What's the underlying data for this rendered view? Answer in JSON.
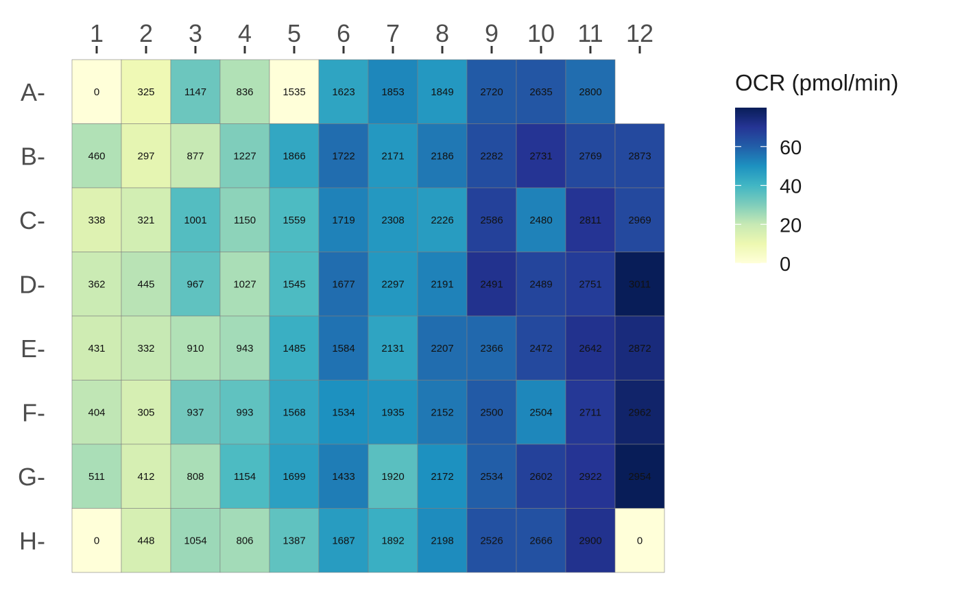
{
  "chart_data": {
    "type": "heatmap",
    "columns": [
      "1",
      "2",
      "3",
      "4",
      "5",
      "6",
      "7",
      "8",
      "9",
      "10",
      "11",
      "12"
    ],
    "rows": [
      "A",
      "B",
      "C",
      "D",
      "E",
      "F",
      "G",
      "H"
    ],
    "row_labels": [
      "A-",
      "B-",
      "C-",
      "D-",
      "E-",
      "F-",
      "G-",
      "H-"
    ],
    "values": [
      [
        0,
        325,
        1147,
        836,
        1535,
        1623,
        1853,
        1849,
        2720,
        2635,
        2800,
        null
      ],
      [
        460,
        297,
        877,
        1227,
        1866,
        1722,
        2171,
        2186,
        2282,
        2731,
        2769,
        2873
      ],
      [
        338,
        321,
        1001,
        1150,
        1559,
        1719,
        2308,
        2226,
        2586,
        2480,
        2811,
        2969
      ],
      [
        362,
        445,
        967,
        1027,
        1545,
        1677,
        2297,
        2191,
        2491,
        2489,
        2751,
        3011
      ],
      [
        431,
        332,
        910,
        943,
        1485,
        1584,
        2131,
        2207,
        2366,
        2472,
        2642,
        2872
      ],
      [
        404,
        305,
        937,
        993,
        1568,
        1534,
        1935,
        2152,
        2500,
        2504,
        2711,
        2962
      ],
      [
        511,
        412,
        808,
        1154,
        1699,
        1433,
        1920,
        2172,
        2534,
        2602,
        2922,
        2954
      ],
      [
        0,
        448,
        1054,
        806,
        1387,
        1687,
        1892,
        2198,
        2526,
        2666,
        2900,
        0
      ]
    ],
    "fill_values": [
      [
        0,
        9,
        33,
        23,
        0,
        45,
        52,
        48,
        61,
        62,
        57,
        null
      ],
      [
        23,
        12,
        20,
        30,
        44,
        57,
        48,
        55,
        64,
        70,
        65,
        65
      ],
      [
        14,
        17,
        37,
        28,
        38,
        53,
        48,
        47,
        67,
        53,
        70,
        65
      ],
      [
        19,
        22,
        35,
        24,
        38,
        57,
        48,
        53,
        71,
        66,
        68,
        80
      ],
      [
        18,
        20,
        23,
        25,
        42,
        56,
        45,
        57,
        58,
        65,
        71,
        74
      ],
      [
        21,
        16,
        32,
        35,
        44,
        50,
        49,
        55,
        61,
        52,
        69,
        77
      ],
      [
        24,
        16,
        24,
        38,
        46,
        54,
        36,
        50,
        60,
        67,
        70,
        80
      ],
      [
        0,
        16,
        26,
        25,
        35,
        47,
        42,
        51,
        63,
        63,
        71,
        0
      ]
    ],
    "color_scale": {
      "domain": [
        0,
        80
      ],
      "stops": [
        "#ffffd9",
        "#edf8b1",
        "#c7e9b4",
        "#7fcdbb",
        "#41b6c4",
        "#1d91c0",
        "#225ea8",
        "#253494",
        "#081d58"
      ]
    },
    "legend": {
      "title": "OCR (pmol/min)",
      "ticks": [
        0,
        20,
        40,
        60
      ],
      "tick_labels": [
        "0",
        "20",
        "40",
        "60"
      ],
      "range": [
        0,
        80
      ],
      "placement": "right"
    },
    "grid": false
  }
}
